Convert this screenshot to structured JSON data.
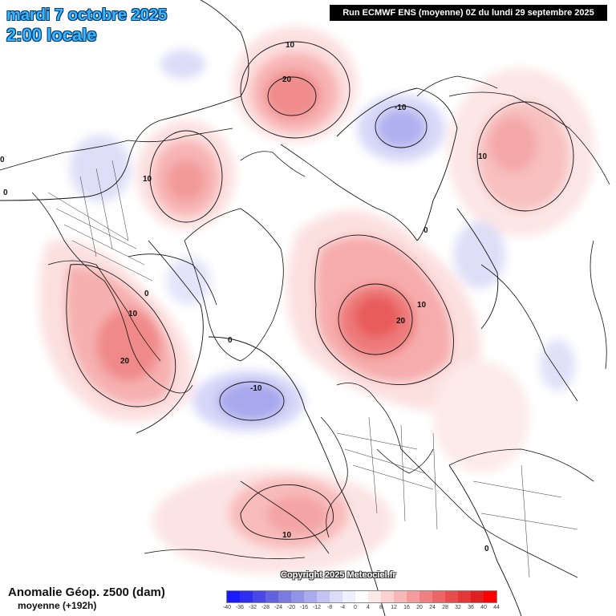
{
  "header": {
    "date": "mardi 7 octobre 2025",
    "time": "2:00 locale",
    "run": "Run ECMWF ENS (moyenne) 0Z du lundi 29 septembre 2025"
  },
  "footer": {
    "variable": "Anomalie Géop. z500 (dam)",
    "subtitle": "moyenne   (+192h)",
    "copyright": "Copyright 2025 Meteociel.fr"
  },
  "legend": {
    "colors": [
      "#1a1aff",
      "#2e2ef0",
      "#4848e6",
      "#6262e0",
      "#7a7ae0",
      "#9292e6",
      "#aaaaee",
      "#c4c4f4",
      "#dcdcf8",
      "#f0f0fc",
      "#ffffff",
      "#fde8e8",
      "#fbd0d0",
      "#f8b8b8",
      "#f49c9c",
      "#f08080",
      "#ec6666",
      "#e84c4c",
      "#e43636",
      "#e02020",
      "#ff0000"
    ],
    "labels": [
      "-40",
      "-36",
      "-32",
      "-28",
      "-24",
      "-20",
      "-16",
      "-12",
      "-8",
      "-4",
      "0",
      "4",
      "8",
      "12",
      "16",
      "20",
      "24",
      "28",
      "32",
      "36",
      "40",
      "44"
    ]
  },
  "contour_labels": [
    {
      "text": "10"
    },
    {
      "text": "20"
    },
    {
      "text": "-10"
    },
    {
      "text": "10"
    },
    {
      "text": "10"
    },
    {
      "text": "0"
    },
    {
      "text": "0"
    },
    {
      "text": "10"
    },
    {
      "text": "20"
    },
    {
      "text": "0"
    },
    {
      "text": "0"
    },
    {
      "text": "10"
    },
    {
      "text": "20"
    },
    {
      "text": "-10"
    },
    {
      "text": "10"
    },
    {
      "text": "0"
    },
    {
      "text": "0"
    }
  ]
}
